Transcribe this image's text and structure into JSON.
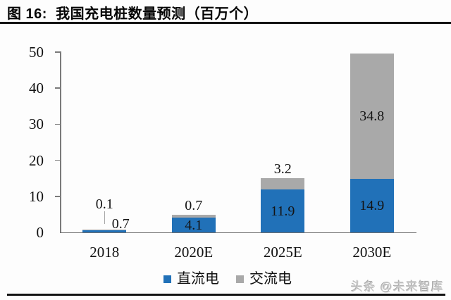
{
  "header": {
    "figure_title": "图 16:  我国充电桩数量预测（百万个）"
  },
  "watermark": {
    "text": "头条 @未来智库"
  },
  "chart_data": {
    "type": "bar",
    "stacked": true,
    "title": "我国充电桩数量预测（百万个）",
    "unit": "百万个",
    "categories": [
      "2018",
      "2020E",
      "2025E",
      "2030E"
    ],
    "series": [
      {
        "name": "直流电",
        "color": "#2171B8",
        "values": [
          0.7,
          4.1,
          11.9,
          14.9
        ]
      },
      {
        "name": "交流电",
        "color": "#A9A9A9",
        "values": [
          0.1,
          0.7,
          3.2,
          34.8
        ]
      }
    ],
    "data_labels": {
      "直流电": [
        "0.7",
        "4.1",
        "11.9",
        "14.9"
      ],
      "交流电": [
        "0.1",
        "0.7",
        "3.2",
        "34.8"
      ]
    },
    "label_placement": {
      "直流电": [
        "right-of-bar",
        "inside",
        "inside",
        "inside"
      ],
      "交流电": [
        "callout",
        "above",
        "above",
        "inside"
      ]
    },
    "ylim": [
      0,
      50
    ],
    "yticks": [
      0,
      10,
      20,
      30,
      40,
      50
    ],
    "grid": false,
    "legend_position": "bottom"
  }
}
